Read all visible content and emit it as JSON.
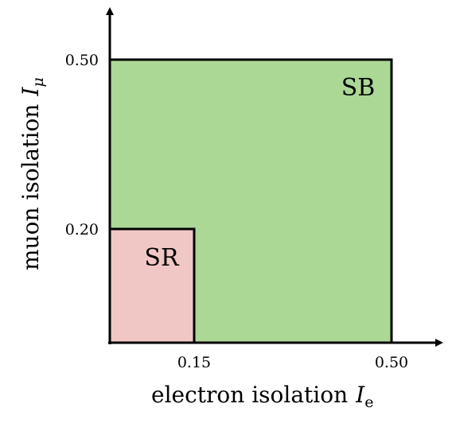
{
  "diagram": {
    "regions": [
      {
        "label": "SB",
        "x_max": 0.5,
        "y_max": 0.5,
        "color": "#acd896"
      },
      {
        "label": "SR",
        "x_max": 0.15,
        "y_max": 0.2,
        "color": "#f1c7c6"
      }
    ],
    "x_axis": {
      "label": "electron isolation",
      "symbol": "I",
      "subscript": "e",
      "ticks": [
        "0.15",
        "0.50"
      ]
    },
    "y_axis": {
      "label": "muon isolation",
      "symbol": "I",
      "subscript": "μ",
      "ticks": [
        "0.20",
        "0.50"
      ]
    }
  }
}
